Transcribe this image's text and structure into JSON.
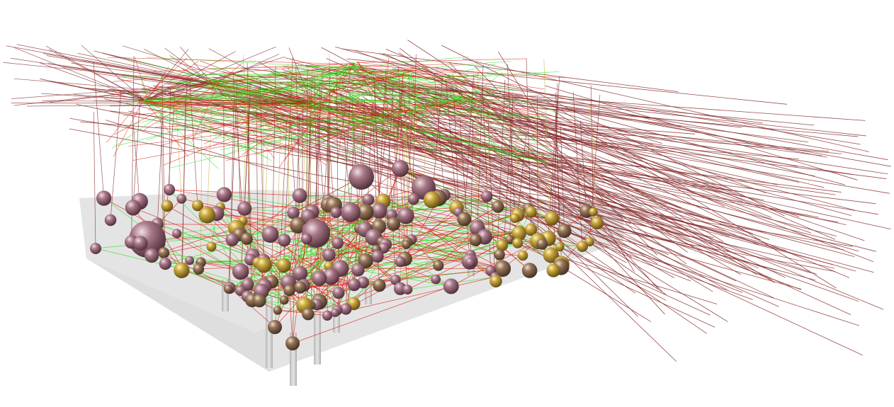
{
  "scene": {
    "colors": {
      "background": "#ffffff",
      "platform_top": "#e9e9e9",
      "platform_side": "#dcdcdc",
      "platform_front": "#d2d2d2",
      "pillar": "#c9c9c9",
      "edge_red": "#e01a10",
      "edge_green": "#2ee01a",
      "edge_brown": "#8a2f2f",
      "edge_olive": "#c8b84a",
      "node_mauve": "#9a6a78",
      "node_brown": "#8a6a55",
      "node_gold": "#c8a640"
    },
    "node_groups": [
      "mauve",
      "brown",
      "gold"
    ],
    "edge_kinds": [
      "red",
      "green",
      "brown-ray",
      "olive"
    ]
  }
}
